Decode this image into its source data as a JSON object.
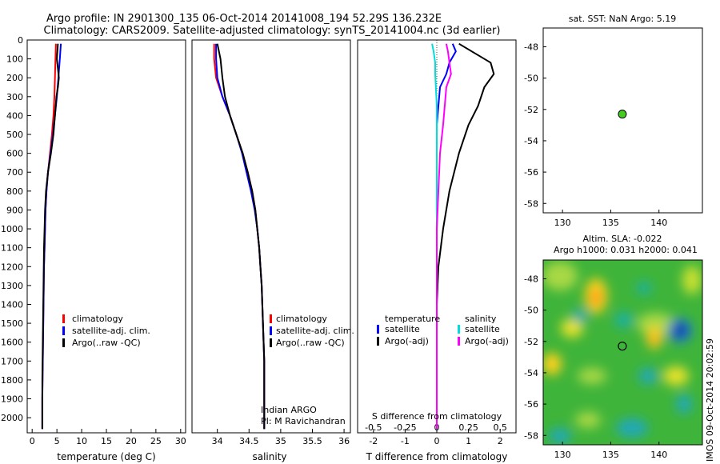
{
  "header": {
    "line1": "Argo profile: IN 2901300_135 06-Oct-2014 20141008_194 52.29S 136.232E",
    "line2": "Climatology: CARS2009. Satellite-adjusted climatology: synTS_20141004.nc (3d earlier)"
  },
  "side_label": "IMOS 09-Oct-2014 20:02:59",
  "colors": {
    "climatology": "#ff0000",
    "satellite": "#0000ff",
    "argo": "#000000",
    "sal_satellite": "#00dddd",
    "sal_argo": "#ff00ff",
    "dot": "#44cc22"
  },
  "chart_data": [
    {
      "type": "line",
      "id": "temperature",
      "xlabel": "temperature (deg C)",
      "xlim": [
        -1,
        31
      ],
      "ylim": [
        2080,
        0
      ],
      "xticks": [
        0,
        5,
        10,
        15,
        20,
        25,
        30
      ],
      "yticks": [
        0,
        100,
        200,
        300,
        400,
        500,
        600,
        700,
        800,
        900,
        1000,
        1100,
        1200,
        1300,
        1400,
        1500,
        1600,
        1700,
        1800,
        1900,
        2000
      ],
      "legend": [
        "climatology",
        "satellite-adj. clim.",
        "Argo(..raw -QC)"
      ],
      "series": [
        {
          "name": "climatology",
          "color": "#ff0000",
          "x": [
            4.8,
            4.7,
            4.6,
            4.5,
            4.3,
            4.0,
            3.6,
            3.2,
            2.9,
            2.7,
            2.6,
            2.5,
            2.4,
            2.35,
            2.3,
            2.25,
            2.2,
            2.15,
            2.1,
            2.05,
            2.05
          ],
          "y": [
            20,
            100,
            200,
            300,
            400,
            500,
            600,
            700,
            800,
            900,
            1000,
            1100,
            1200,
            1300,
            1400,
            1500,
            1600,
            1700,
            1800,
            1900,
            2060
          ]
        },
        {
          "name": "satellite-adj. clim.",
          "color": "#0000ff",
          "x": [
            5.8,
            5.6,
            5.3,
            5.0,
            4.6,
            4.2,
            3.7,
            3.2,
            2.9,
            2.7,
            2.6,
            2.5,
            2.4,
            2.35,
            2.3,
            2.25,
            2.2,
            2.15,
            2.1,
            2.05,
            2.05
          ],
          "y": [
            20,
            100,
            200,
            300,
            400,
            500,
            600,
            700,
            800,
            900,
            1000,
            1100,
            1200,
            1300,
            1400,
            1500,
            1600,
            1700,
            1800,
            1900,
            2060
          ]
        },
        {
          "name": "Argo(..raw -QC)",
          "color": "#000000",
          "x": [
            5.2,
            5.0,
            5.4,
            5.2,
            4.9,
            4.6,
            4.3,
            3.8,
            3.2,
            2.8,
            2.6,
            2.5,
            2.4,
            2.35,
            2.3,
            2.25,
            2.2,
            2.15,
            2.1,
            2.05,
            2.05
          ],
          "y": [
            20,
            100,
            200,
            250,
            300,
            400,
            500,
            600,
            700,
            800,
            900,
            1000,
            1100,
            1200,
            1300,
            1400,
            1500,
            1600,
            1700,
            1800,
            2060
          ]
        }
      ]
    },
    {
      "type": "line",
      "id": "salinity",
      "xlabel": "salinity",
      "xlim": [
        33.6,
        36.1
      ],
      "ylim": [
        2080,
        0
      ],
      "xticks": [
        34,
        34.5,
        35,
        35.5,
        36
      ],
      "legend": [
        "climatology",
        "satellite-adj. clim.",
        "Argo(..raw -QC)"
      ],
      "annotation": [
        "Indian ARGO",
        "PI: M Ravichandran"
      ],
      "series": [
        {
          "name": "climatology",
          "color": "#ff0000",
          "x": [
            33.95,
            33.95,
            33.98,
            34.08,
            34.2,
            34.3,
            34.4,
            34.48,
            34.55,
            34.6,
            34.63,
            34.66,
            34.68,
            34.7,
            34.71,
            34.72,
            34.73,
            34.74,
            34.74,
            34.74,
            34.74
          ],
          "y": [
            20,
            100,
            200,
            300,
            400,
            500,
            600,
            700,
            800,
            900,
            1000,
            1100,
            1200,
            1300,
            1400,
            1500,
            1600,
            1700,
            1800,
            1900,
            2060
          ]
        },
        {
          "name": "satellite-adj. clim.",
          "color": "#0000ff",
          "x": [
            33.98,
            33.98,
            34.0,
            34.08,
            34.2,
            34.3,
            34.39,
            34.46,
            34.53,
            34.59,
            34.63,
            34.66,
            34.68,
            34.7,
            34.71,
            34.72,
            34.73,
            34.74,
            34.74,
            34.74,
            34.74
          ],
          "y": [
            20,
            100,
            200,
            300,
            400,
            500,
            600,
            700,
            800,
            900,
            1000,
            1100,
            1200,
            1300,
            1400,
            1500,
            1600,
            1700,
            1800,
            1900,
            2060
          ]
        },
        {
          "name": "Argo(..raw -QC)",
          "color": "#000000",
          "x": [
            34.0,
            34.05,
            34.08,
            34.12,
            34.2,
            34.3,
            34.4,
            34.48,
            34.55,
            34.6,
            34.63,
            34.66,
            34.68,
            34.7,
            34.71,
            34.72,
            34.73,
            34.74,
            34.74,
            34.74,
            34.74
          ],
          "y": [
            20,
            100,
            200,
            300,
            400,
            500,
            600,
            700,
            800,
            900,
            1000,
            1100,
            1200,
            1300,
            1400,
            1500,
            1600,
            1700,
            1800,
            1900,
            2060
          ]
        }
      ]
    },
    {
      "type": "line",
      "id": "difference",
      "xlabel": "T difference from climatology",
      "xlabel_top": "S difference from climatology",
      "xlim": [
        -2.5,
        2.5
      ],
      "ylim": [
        2080,
        0
      ],
      "xticks": [
        -2,
        -1,
        0,
        1,
        2
      ],
      "xticks_S": [
        "-0.5",
        "-0.25",
        "0",
        "0.25",
        "0.5"
      ],
      "legend": {
        "temperature": [
          "satellite",
          "Argo(-adj)"
        ],
        "salinity": [
          "satellite",
          "Argo(-adj)"
        ]
      },
      "legend_headers": [
        "temperature",
        "salinity"
      ],
      "series": [
        {
          "name": "temperature satellite",
          "color": "#0000ff",
          "x": [
            0.5,
            0.6,
            0.4,
            0.3,
            0.1,
            0.05,
            0.0,
            0.0,
            0.0,
            0.0,
            0.0,
            0.0,
            0.0,
            0.0,
            0.0,
            0.0,
            0.0,
            0.0,
            0.0
          ],
          "y": [
            20,
            60,
            120,
            180,
            250,
            350,
            450,
            600,
            800,
            1000,
            1200,
            1400,
            1500,
            1600,
            1700,
            1800,
            1900,
            2000,
            2060
          ]
        },
        {
          "name": "temperature Argo(-adj)",
          "color": "#000000",
          "x": [
            0.7,
            1.1,
            1.7,
            1.8,
            1.5,
            1.3,
            1.0,
            0.7,
            0.4,
            0.2,
            0.05,
            0.0,
            0.0,
            0.0,
            0.0,
            0.0,
            0.0,
            0.0,
            0.0
          ],
          "y": [
            20,
            60,
            120,
            180,
            250,
            350,
            450,
            600,
            800,
            1000,
            1200,
            1400,
            1500,
            1600,
            1700,
            1800,
            1900,
            2000,
            2060
          ]
        },
        {
          "name": "salinity satellite",
          "color": "#00dddd",
          "x": [
            -0.15,
            -0.1,
            -0.05,
            -0.05,
            -0.03,
            0.0,
            0.0,
            0.0,
            0.0,
            0.0,
            0.0,
            0.0,
            0.0,
            0.0,
            0.0,
            0.0,
            0.0,
            0.0,
            0.0
          ],
          "y": [
            20,
            60,
            120,
            180,
            250,
            350,
            450,
            600,
            800,
            1000,
            1200,
            1400,
            1500,
            1600,
            1700,
            1800,
            1900,
            2000,
            2060
          ]
        },
        {
          "name": "salinity Argo(-adj)",
          "color": "#ff00ff",
          "x": [
            0.3,
            0.35,
            0.4,
            0.45,
            0.3,
            0.25,
            0.2,
            0.1,
            0.05,
            0.0,
            0.0,
            0.0,
            0.0,
            0.0,
            0.0,
            0.0,
            0.0,
            0.0,
            0.0
          ],
          "y": [
            20,
            60,
            120,
            180,
            250,
            350,
            450,
            600,
            800,
            1000,
            1200,
            1400,
            1500,
            1600,
            1700,
            1800,
            1900,
            2000,
            2060
          ]
        }
      ]
    },
    {
      "type": "scatter",
      "id": "sst_map",
      "title": "sat. SST: NaN Argo: 5.19",
      "xlim": [
        128,
        144.5
      ],
      "ylim": [
        -58.6,
        -46.8
      ],
      "xticks": [
        130,
        135,
        140
      ],
      "yticks": [
        -48,
        -50,
        -52,
        -54,
        -56,
        -58
      ],
      "points": [
        {
          "x": 136.2,
          "y": -52.3
        }
      ]
    },
    {
      "type": "heatmap",
      "id": "sla_map",
      "title_line1": "Altim. SLA: -0.022",
      "title_line2": "Argo h1000: 0.031 h2000: 0.041",
      "xlim": [
        128,
        144.5
      ],
      "ylim": [
        -58.6,
        -46.8
      ],
      "xticks": [
        130,
        135,
        140
      ],
      "yticks": [
        -48,
        -50,
        -52,
        -54,
        -56,
        -58
      ],
      "points": [
        {
          "x": 136.2,
          "y": -52.3
        }
      ]
    }
  ]
}
